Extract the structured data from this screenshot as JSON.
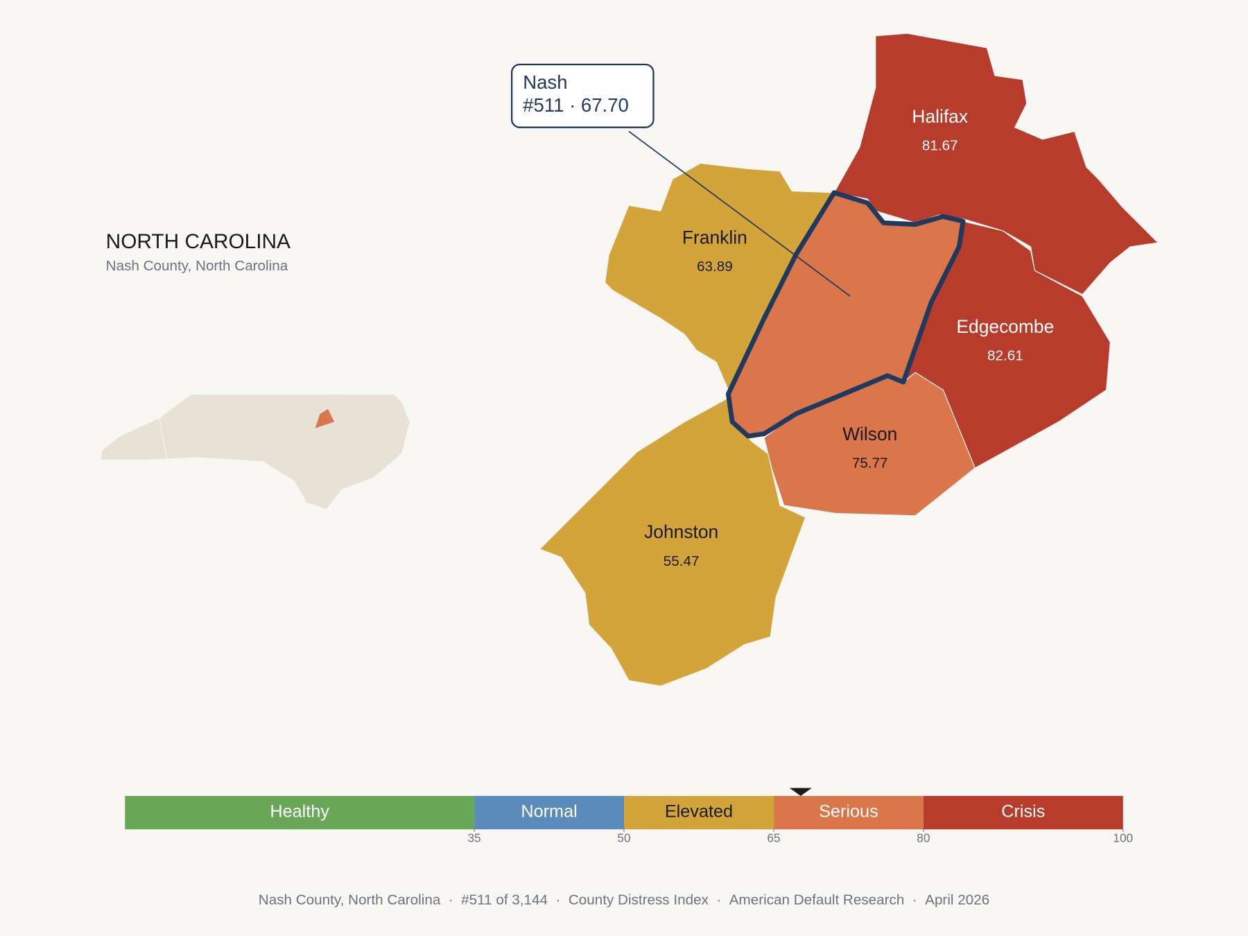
{
  "header": {
    "title": "NORTH CAROLINA",
    "subtitle": "Nash County, North Carolina"
  },
  "callout": {
    "name": "Nash",
    "text": "#511 · 67.70",
    "value": 67.7
  },
  "counties": [
    {
      "name": "Halifax",
      "value": 81.67
    },
    {
      "name": "Franklin",
      "value": 63.89
    },
    {
      "name": "Edgecombe",
      "value": 82.61
    },
    {
      "name": "Wilson",
      "value": 75.77
    },
    {
      "name": "Johnston",
      "value": 55.47
    }
  ],
  "scale": {
    "lim": [
      0,
      100
    ],
    "ticks": [
      35,
      50,
      65,
      80,
      100
    ],
    "bands": [
      {
        "name": "Healthy",
        "color": "#67a757"
      },
      {
        "name": "Normal",
        "color": "#5b8bbb"
      },
      {
        "name": "Elevated",
        "color": "#d3a43a"
      },
      {
        "name": "Serious",
        "color": "#db754a"
      },
      {
        "name": "Crisis",
        "color": "#b83c2c"
      }
    ]
  },
  "footer": [
    "Nash County, North Carolina",
    "#511 of 3,144",
    "County Distress Index",
    "American Default Research",
    "April 2026"
  ]
}
